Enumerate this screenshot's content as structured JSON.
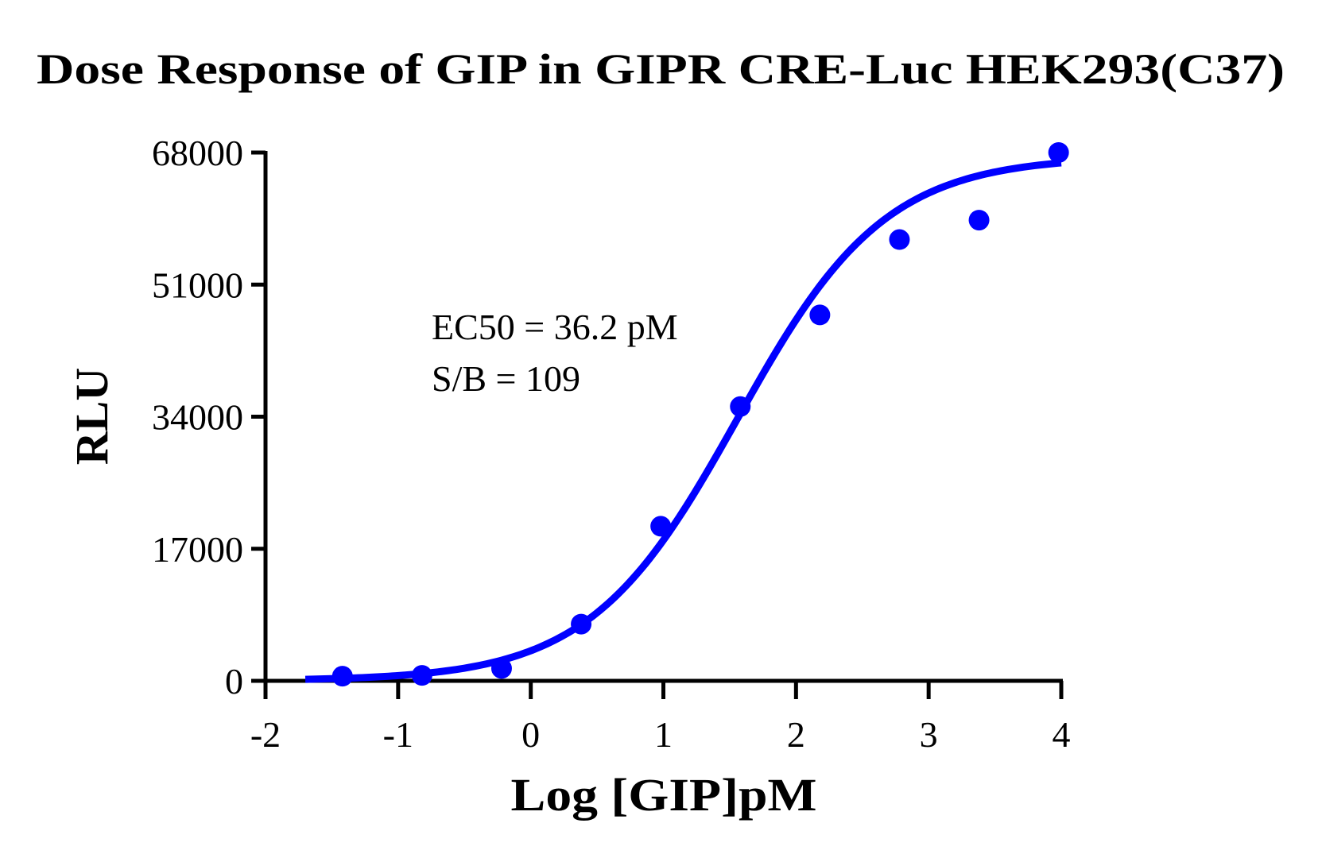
{
  "chart_data": {
    "type": "scatter",
    "title": "Dose Response of GIP in GIPR CRE-Luc HEK293(C37)",
    "xlabel": "Log [GIP]pM",
    "ylabel": "RLU",
    "xlim": [
      -2,
      4
    ],
    "ylim": [
      0,
      68000
    ],
    "xticks": [
      -2,
      -1,
      0,
      1,
      2,
      3,
      4
    ],
    "xtick_labels": [
      "-2",
      "-1",
      "0",
      "1",
      "2",
      "3",
      "4"
    ],
    "yticks": [
      0,
      17000,
      34000,
      51000,
      68000
    ],
    "ytick_labels": [
      "0",
      "17000",
      "34000",
      "51000",
      "68000"
    ],
    "grid": false,
    "legend": null,
    "series": [
      {
        "name": "GIP",
        "color": "#0000ff",
        "marker": "circle",
        "x": [
          -1.42,
          -0.82,
          -0.22,
          0.38,
          0.98,
          1.58,
          2.18,
          2.78,
          3.38,
          3.98
        ],
        "y": [
          600,
          700,
          1600,
          7300,
          19900,
          35300,
          47100,
          56800,
          59300,
          68000
        ]
      }
    ],
    "fit": {
      "type": "four-parameter logistic",
      "color": "#0000ff",
      "bottom": 0,
      "top": 67500,
      "log_ec50": 1.559,
      "hill_slope": 0.78,
      "x_range": [
        -1.7,
        4.0
      ]
    },
    "annotations": [
      {
        "text": "EC50 = 36.2 pM"
      },
      {
        "text": "S/B = 109"
      }
    ]
  },
  "colors": {
    "series": "#0000ff",
    "axis": "#000000",
    "background": "#ffffff"
  }
}
